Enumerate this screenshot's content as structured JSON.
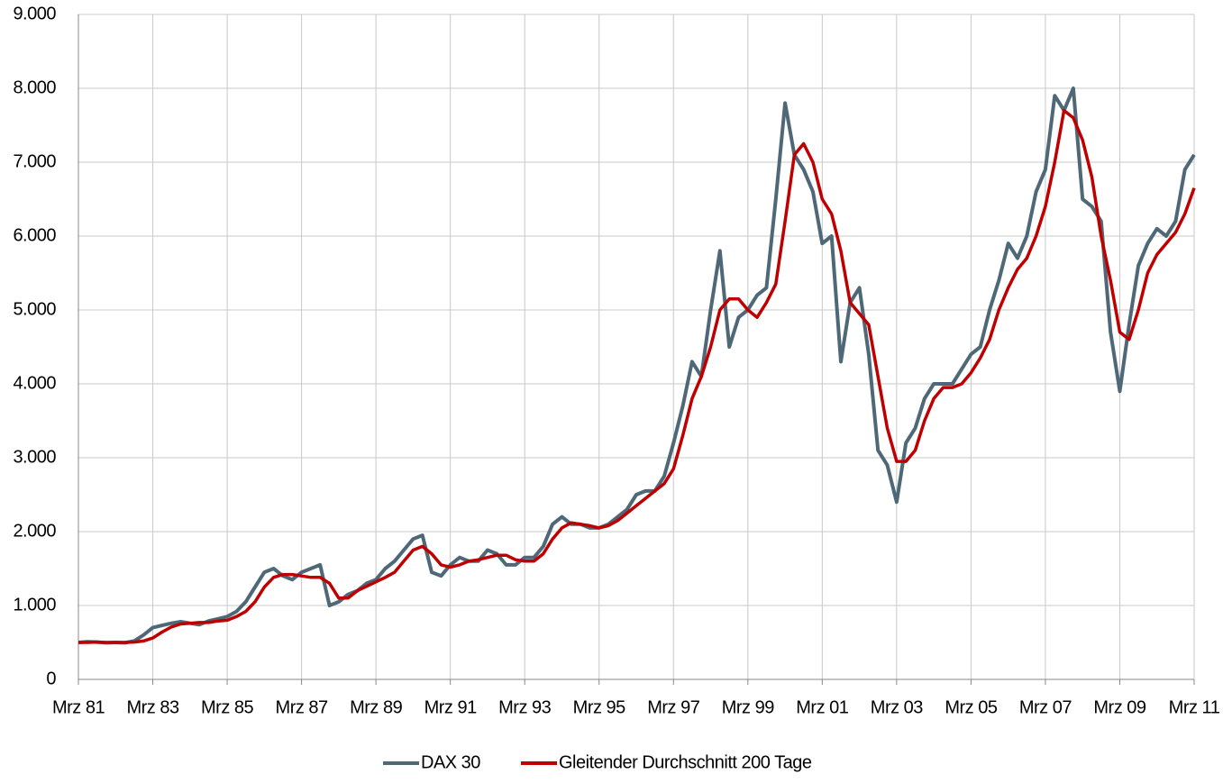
{
  "chart_data": {
    "type": "line",
    "categories": [
      "Mrz 81",
      null,
      null,
      null,
      null,
      null,
      null,
      null,
      "Mrz 83",
      null,
      null,
      null,
      null,
      null,
      null,
      null,
      "Mrz 85",
      null,
      null,
      null,
      null,
      null,
      null,
      null,
      "Mrz 87",
      null,
      null,
      null,
      null,
      null,
      null,
      null,
      "Mrz 89",
      null,
      null,
      null,
      null,
      null,
      null,
      null,
      "Mrz 91",
      null,
      null,
      null,
      null,
      null,
      null,
      null,
      "Mrz 93",
      null,
      null,
      null,
      null,
      null,
      null,
      null,
      "Mrz 95",
      null,
      null,
      null,
      null,
      null,
      null,
      null,
      "Mrz 97",
      null,
      null,
      null,
      null,
      null,
      null,
      null,
      "Mrz 99",
      null,
      null,
      null,
      null,
      null,
      null,
      null,
      "Mrz 01",
      null,
      null,
      null,
      null,
      null,
      null,
      null,
      "Mrz 03",
      null,
      null,
      null,
      null,
      null,
      null,
      null,
      "Mrz 05",
      null,
      null,
      null,
      null,
      null,
      null,
      null,
      "Mrz 07",
      null,
      null,
      null,
      null,
      null,
      null,
      null,
      "Mrz 09",
      null,
      null,
      null,
      null,
      null,
      null,
      null,
      "Mrz 11"
    ],
    "series": [
      {
        "name": "DAX 30",
        "color": "#4e6878",
        "values": [
          500,
          510,
          505,
          495,
          500,
          495,
          520,
          600,
          700,
          730,
          760,
          780,
          760,
          740,
          790,
          820,
          850,
          920,
          1050,
          1250,
          1450,
          1500,
          1400,
          1350,
          1450,
          1500,
          1550,
          1000,
          1050,
          1150,
          1200,
          1300,
          1350,
          1500,
          1600,
          1750,
          1900,
          1950,
          1450,
          1400,
          1550,
          1650,
          1600,
          1600,
          1750,
          1700,
          1550,
          1550,
          1650,
          1650,
          1800,
          2100,
          2200,
          2100,
          2100,
          2050,
          2050,
          2100,
          2200,
          2300,
          2500,
          2550,
          2550,
          2750,
          3200,
          3700,
          4300,
          4100,
          5000,
          5800,
          4500,
          4900,
          5000,
          5200,
          5300,
          6500,
          7800,
          7100,
          6900,
          6600,
          5900,
          6000,
          4300,
          5100,
          5300,
          4400,
          3100,
          2900,
          2400,
          3200,
          3400,
          3800,
          4000,
          4000,
          4000,
          4200,
          4400,
          4500,
          5000,
          5400,
          5900,
          5700,
          6000,
          6600,
          6900,
          7900,
          7700,
          8000,
          6500,
          6400,
          6200,
          4700,
          3900,
          4800,
          5600,
          5900,
          6100,
          6000,
          6200,
          6900,
          7100
        ]
      },
      {
        "name": "Gleitender Durchschnitt 200 Tage",
        "color": "#c00000",
        "values": [
          500,
          500,
          505,
          500,
          500,
          500,
          505,
          520,
          560,
          640,
          710,
          750,
          760,
          770,
          770,
          790,
          800,
          850,
          920,
          1050,
          1250,
          1380,
          1420,
          1420,
          1400,
          1380,
          1380,
          1300,
          1100,
          1100,
          1200,
          1260,
          1320,
          1380,
          1450,
          1600,
          1750,
          1800,
          1700,
          1550,
          1520,
          1550,
          1600,
          1620,
          1650,
          1680,
          1680,
          1620,
          1600,
          1600,
          1700,
          1900,
          2050,
          2120,
          2100,
          2080,
          2050,
          2080,
          2150,
          2250,
          2350,
          2450,
          2550,
          2650,
          2850,
          3300,
          3800,
          4100,
          4500,
          5000,
          5150,
          5150,
          5000,
          4900,
          5100,
          5350,
          6200,
          7100,
          7250,
          7000,
          6500,
          6300,
          5800,
          5100,
          4950,
          4800,
          4100,
          3400,
          2950,
          2950,
          3100,
          3500,
          3800,
          3950,
          3950,
          4000,
          4150,
          4350,
          4600,
          5000,
          5300,
          5550,
          5700,
          6000,
          6400,
          7000,
          7700,
          7600,
          7300,
          6800,
          6000,
          5400,
          4700,
          4600,
          5000,
          5500,
          5750,
          5900,
          6050,
          6300,
          6650
        ]
      }
    ],
    "ylim": [
      0,
      9000
    ],
    "yticks": [
      0,
      {
        "value": 1000,
        "label": "1.000"
      },
      {
        "value": 2000,
        "label": "2.000"
      },
      {
        "value": 3000,
        "label": "3.000"
      },
      {
        "value": 4000,
        "label": "4.000"
      },
      {
        "value": 5000,
        "label": "5.000"
      },
      {
        "value": 6000,
        "label": "6.000"
      },
      {
        "value": 7000,
        "label": "7.000"
      },
      {
        "value": 8000,
        "label": "8.000"
      },
      {
        "value": 9000,
        "label": "9.000"
      }
    ],
    "grid": true,
    "legend": "bottom"
  }
}
